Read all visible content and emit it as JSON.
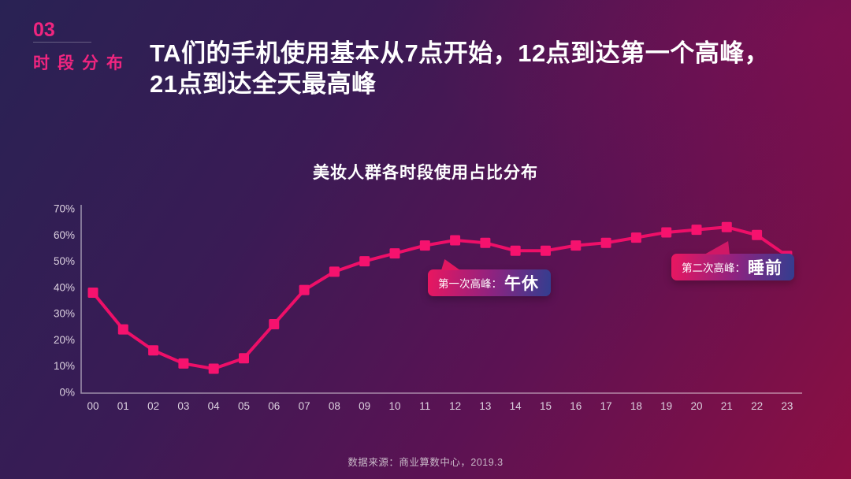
{
  "page": {
    "section_number": "03",
    "section_label": "时段分布",
    "title": "TA们的手机使用基本从7点开始，12点到达第一个高峰，\n21点到达全天最高峰",
    "source": "数据来源：商业算数中心，2019.3"
  },
  "chart_data": {
    "type": "line",
    "title": "美妆人群各时段使用占比分布",
    "x": [
      "00",
      "01",
      "02",
      "03",
      "04",
      "05",
      "06",
      "07",
      "08",
      "09",
      "10",
      "11",
      "12",
      "13",
      "14",
      "15",
      "16",
      "17",
      "18",
      "19",
      "20",
      "21",
      "22",
      "23"
    ],
    "values": [
      38,
      24,
      16,
      11,
      9,
      13,
      26,
      39,
      46,
      50,
      53,
      56,
      58,
      57,
      54,
      54,
      56,
      57,
      59,
      61,
      62,
      63,
      60,
      52
    ],
    "y_ticks": [
      "0%",
      "10%",
      "20%",
      "30%",
      "40%",
      "50%",
      "60%",
      "70%"
    ],
    "ylim": [
      0,
      70
    ],
    "unit": "%",
    "xlabel": "",
    "ylabel": "",
    "grid": false,
    "legend": "none",
    "marker": "square",
    "annotations": [
      {
        "label": "第一次高峰：",
        "value": "午休",
        "points_to_x": "12"
      },
      {
        "label": "第二次高峰：",
        "value": "睡前",
        "points_to_x": "21"
      }
    ]
  },
  "colors": {
    "accent_pink": "#f0257f",
    "line": "#ee0f68",
    "marker": "#f6126e",
    "axis": "rgba(255,255,255,0.5)",
    "tick_label": "#ddd2e0",
    "callout_gradient_start": "#ea1660",
    "callout_gradient_end": "#323e90",
    "background_top_left": "#292254",
    "background_bottom_right": "#8d0f43"
  }
}
